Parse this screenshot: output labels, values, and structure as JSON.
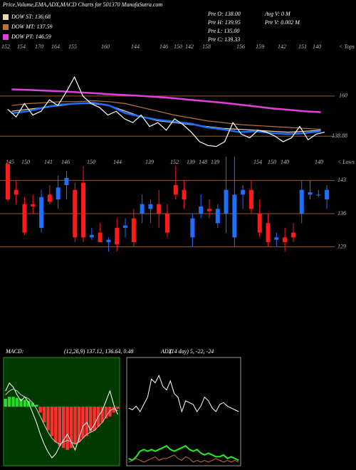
{
  "header": {
    "title": "Price,Volume,EMA,ADX,MACD Charts for 501370 MunafaSutra.com",
    "stats": [
      "Pre O: 138.00",
      "Pre H: 139.95",
      "Pre L: 135.00",
      "Pre C: 139.33",
      "Avg V: 0 M",
      "Pre V: 0.002 M"
    ]
  },
  "chart_data": [
    {
      "type": "line",
      "top_labels": [
        152,
        154,
        170,
        164,
        155,
        160,
        144,
        146,
        150,
        142,
        158,
        156,
        159,
        142,
        151,
        140
      ],
      "annotation": "< Tops",
      "ylim": [
        130,
        188
      ],
      "yticks": [
        160,
        138.88
      ],
      "grid": true,
      "series": [
        {
          "name": "DOW ST: 136.68",
          "color": "#e8d8b0",
          "values": [
            152,
            153,
            154,
            155,
            156,
            156,
            155,
            152,
            149,
            147,
            146,
            145,
            144,
            143,
            142.5,
            142,
            141.5,
            141,
            141.5,
            142
          ]
        },
        {
          "name": "DOW MT: 137.59",
          "color": "#b8763a",
          "values": [
            155,
            156,
            156.5,
            157,
            157,
            157.5,
            157,
            156,
            154,
            152,
            150,
            148.5,
            147,
            146,
            145,
            144.5,
            144,
            143.5,
            143,
            142.5
          ]
        },
        {
          "name": "DOW PT: 146.59",
          "color": "#e040e0",
          "values": [
            163.5,
            163.2,
            162.8,
            162.5,
            162,
            161.5,
            161,
            160.5,
            160,
            159.5,
            158.8,
            158,
            157.2,
            156.5,
            155.5,
            154.5,
            153.5,
            152.8,
            152,
            151.5
          ]
        },
        {
          "color": "#1e6fff",
          "values": [
            151,
            152,
            154,
            155.5,
            156,
            156.5,
            155,
            151,
            149,
            147.5,
            146.5,
            145.5,
            143.5,
            142.5,
            141,
            141.5,
            140.5,
            140,
            140.5,
            141.5
          ]
        },
        {
          "color": "#ffffff",
          "values": [
            153,
            149,
            156,
            150,
            152,
            158,
            155,
            162,
            170,
            160,
            156,
            154,
            150,
            152,
            148,
            146,
            150,
            144,
            146,
            142,
            148,
            145,
            141,
            136,
            134,
            133.5,
            136,
            146,
            140,
            138,
            142,
            141,
            139,
            136,
            138,
            144,
            137,
            140,
            141
          ]
        }
      ]
    },
    {
      "type": "candlestick",
      "low_labels": [
        145,
        150,
        141,
        146,
        150,
        144,
        139,
        152,
        139,
        148,
        139,
        154,
        150,
        140,
        140
      ],
      "annotation": "< Lows",
      "ylim": [
        118,
        148
      ],
      "yticks": [
        143,
        136,
        129
      ],
      "grid": true,
      "up_color": "#1e6fff",
      "down_color": "#ff1a1a",
      "open": [
        146.5,
        141,
        138,
        138,
        133,
        140,
        139,
        142,
        141,
        142.5,
        131,
        132,
        130,
        133,
        133,
        135,
        136,
        137,
        138,
        136,
        142,
        141,
        131,
        136,
        137,
        134,
        136,
        131,
        140,
        141,
        136,
        134,
        130.5,
        131,
        132,
        136,
        140,
        140,
        139
      ],
      "high": [
        146.5,
        143,
        139.5,
        140,
        141,
        142,
        144,
        145,
        142.5,
        146,
        133,
        134,
        131,
        135,
        135,
        137,
        140,
        139,
        141,
        138,
        146,
        143,
        136,
        140,
        139,
        138,
        148,
        148,
        142,
        143,
        139,
        136,
        132,
        133,
        134,
        143,
        143,
        141,
        142
      ],
      "low": [
        138.5,
        138,
        131.5,
        136,
        132,
        138,
        137,
        139,
        130,
        130,
        130.5,
        130,
        128,
        128,
        131,
        129,
        134,
        134,
        133,
        131,
        139,
        137,
        129,
        135,
        135,
        133,
        132,
        129,
        137,
        136,
        131,
        129,
        129,
        128,
        130,
        134,
        139,
        139.5,
        137
      ],
      "close": [
        139,
        140,
        132,
        137.5,
        139.5,
        138.5,
        141.5,
        143.5,
        131,
        131,
        131.5,
        130,
        130.5,
        129.5,
        133.5,
        130,
        138,
        138,
        136,
        132,
        140,
        139,
        135,
        137.5,
        136.5,
        137,
        141,
        140,
        141,
        137,
        132,
        130,
        131,
        130,
        131,
        141,
        140.5,
        140,
        141
      ]
    },
    {
      "type": "macd",
      "label": "MACD:",
      "params": "(12,26,9) 137.12, 136.64, 0.48",
      "ylim": [
        -3,
        2.5
      ],
      "histogram": [
        0.4,
        0.5,
        0.5,
        0.45,
        0.4,
        0.35,
        0.3,
        0.2,
        0.1,
        -0.3,
        -0.8,
        -1.2,
        -1.5,
        -1.8,
        -2.0,
        -2.1,
        -2.2,
        -2.1,
        -1.9,
        -1.8,
        -1.6,
        -1.5,
        -1.3,
        -1.2,
        -1.0,
        -0.8,
        -0.6,
        -0.5,
        -0.3,
        -0.1
      ],
      "pos_color": "#22dd22",
      "neg_color": "#ff3030",
      "series": [
        {
          "color": "#ffffff",
          "values": [
            0.8,
            1.2,
            1.0,
            0.6,
            0.3,
            0.5,
            0.2,
            -0.3,
            -0.8,
            -1.4,
            -1.9,
            -2.3,
            -2.6,
            -2.4,
            -2.0,
            -1.7,
            -1.4,
            -1.8,
            -2.2,
            -1.6,
            -1.0,
            -0.8,
            -1.2,
            -0.9,
            -0.5,
            -0.2,
            0.3,
            0.8,
            0.1,
            -0.4
          ]
        },
        {
          "color": "#cccccc",
          "values": [
            0.6,
            0.8,
            0.9,
            0.8,
            0.6,
            0.5,
            0.4,
            0.2,
            -0.1,
            -0.5,
            -0.9,
            -1.3,
            -1.6,
            -1.8,
            -1.9,
            -1.8,
            -1.7,
            -1.8,
            -1.9,
            -1.8,
            -1.6,
            -1.4,
            -1.3,
            -1.2,
            -1.0,
            -0.8,
            -0.5,
            -0.2,
            -0.1,
            -0.2
          ]
        }
      ]
    },
    {
      "type": "adx",
      "label": "ADX",
      "params": "(14 day) 5, -22, -24",
      "ylim": [
        0,
        60
      ],
      "series": [
        {
          "color": "#ffffff",
          "values": [
            32,
            31,
            33,
            30,
            34,
            38,
            48,
            46,
            50,
            44,
            42,
            47,
            40,
            38,
            30,
            36,
            35,
            34,
            30,
            33,
            38,
            36,
            32,
            30,
            34,
            35,
            33,
            32,
            31,
            30
          ]
        },
        {
          "color": "#22ee22",
          "values": [
            4,
            3,
            5,
            8,
            9,
            8,
            9,
            8,
            9,
            10,
            11,
            9,
            8,
            9,
            10,
            11,
            9,
            8,
            9,
            7,
            6,
            7,
            6,
            5,
            5,
            6,
            4,
            5,
            4,
            3
          ]
        },
        {
          "color": "#d07020",
          "values": [
            2,
            3,
            4,
            3,
            2,
            3,
            4,
            5,
            3,
            4,
            4,
            5,
            6,
            4,
            3,
            5,
            4,
            2,
            3,
            2,
            3,
            2,
            3,
            4,
            3,
            2,
            3,
            2,
            3,
            2
          ]
        }
      ]
    }
  ]
}
